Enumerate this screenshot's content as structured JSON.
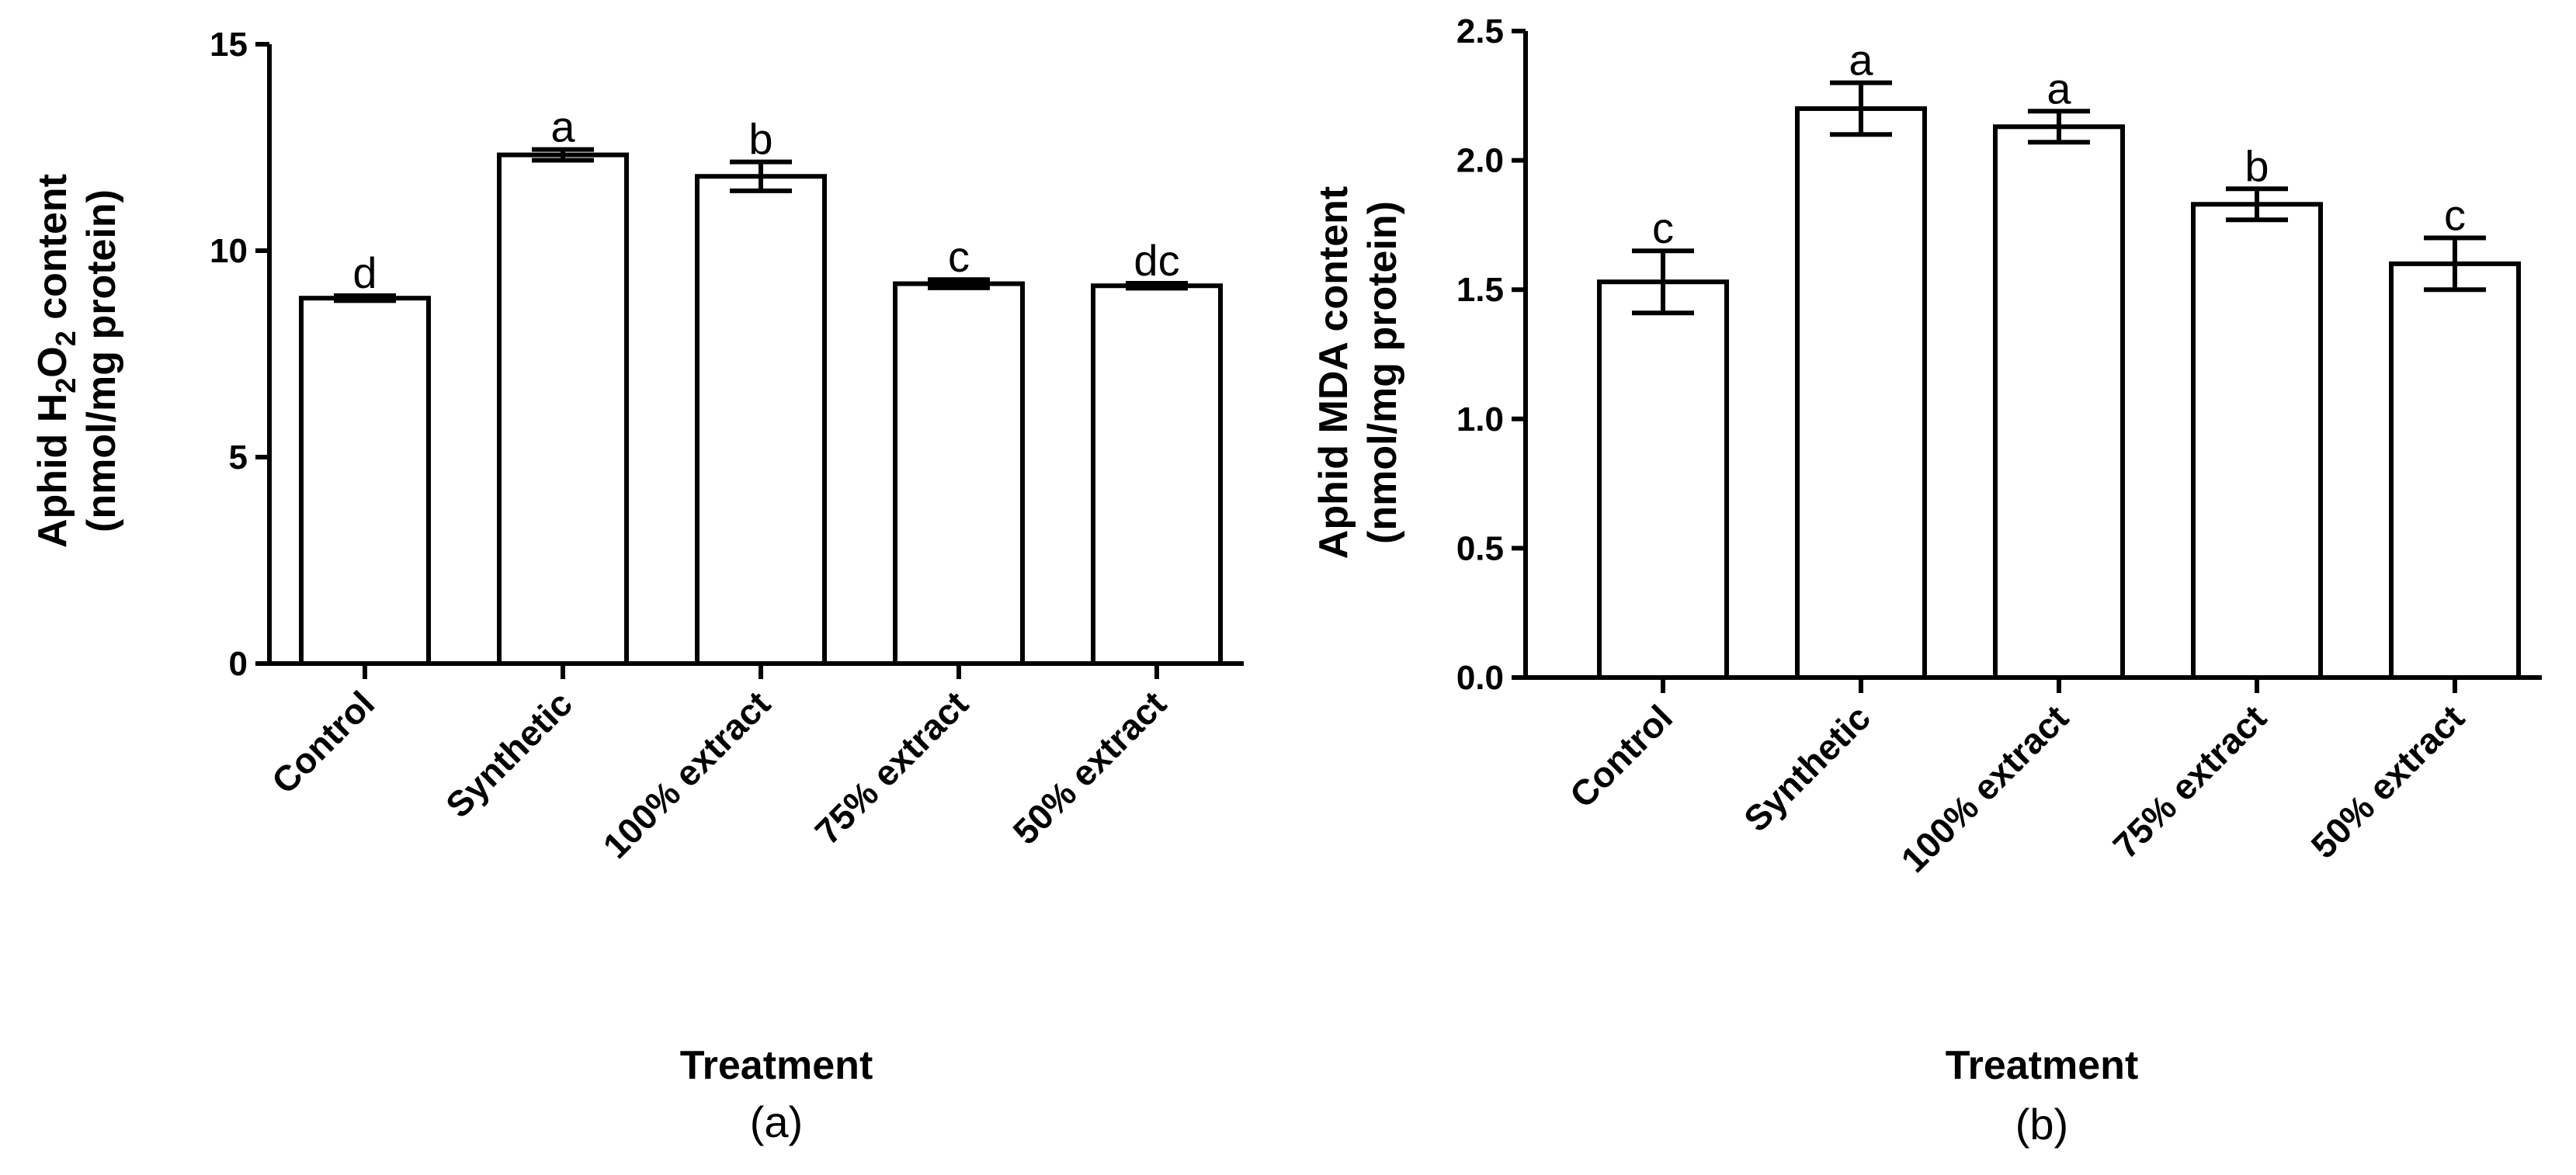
{
  "colors": {
    "bar_fill": "#ffffff",
    "stroke": "#000000",
    "background": "#ffffff"
  },
  "chart_data": [
    {
      "type": "bar",
      "panel_label": "(a)",
      "title": "",
      "categories": [
        "Control",
        "Synthetic",
        "100% extract",
        "75% extract",
        "50% extract"
      ],
      "values": [
        8.85,
        12.32,
        11.8,
        9.2,
        9.15
      ],
      "errors": [
        0.06,
        0.13,
        0.35,
        0.1,
        0.06
      ],
      "significance": [
        "d",
        "a",
        "b",
        "c",
        "dc"
      ],
      "ylabel": "Aphid H₂O₂ content (nmol/mg protein)",
      "ylabel_lines": [
        "Aphid H",
        "2",
        "O",
        "2",
        " content",
        "(nmol/mg protein)"
      ],
      "xlabel": "Treatment",
      "ylim": [
        0,
        15
      ],
      "yticks": [
        0,
        5,
        10,
        15
      ],
      "ytick_labels": [
        "0",
        "5",
        "10",
        "15"
      ],
      "grid": false
    },
    {
      "type": "bar",
      "panel_label": "(b)",
      "title": "",
      "categories": [
        "Control",
        "Synthetic",
        "100% extract",
        "75% extract",
        "50% extract"
      ],
      "values": [
        1.53,
        2.2,
        2.13,
        1.83,
        1.6
      ],
      "errors": [
        0.12,
        0.1,
        0.06,
        0.06,
        0.1
      ],
      "significance": [
        "c",
        "a",
        "a",
        "b",
        "c"
      ],
      "ylabel": "Aphid MDA content (nmol/mg protein)",
      "ylabel_lines": [
        "Aphid MDA content",
        "(nmol/mg protein)"
      ],
      "xlabel": "Treatment",
      "ylim": [
        0,
        2.5
      ],
      "yticks": [
        0,
        0.5,
        1,
        1.5,
        2,
        2.5
      ],
      "ytick_labels": [
        "0.0",
        "0.5",
        "1.0",
        "1.5",
        "2.0",
        "2.5"
      ],
      "grid": false
    }
  ]
}
